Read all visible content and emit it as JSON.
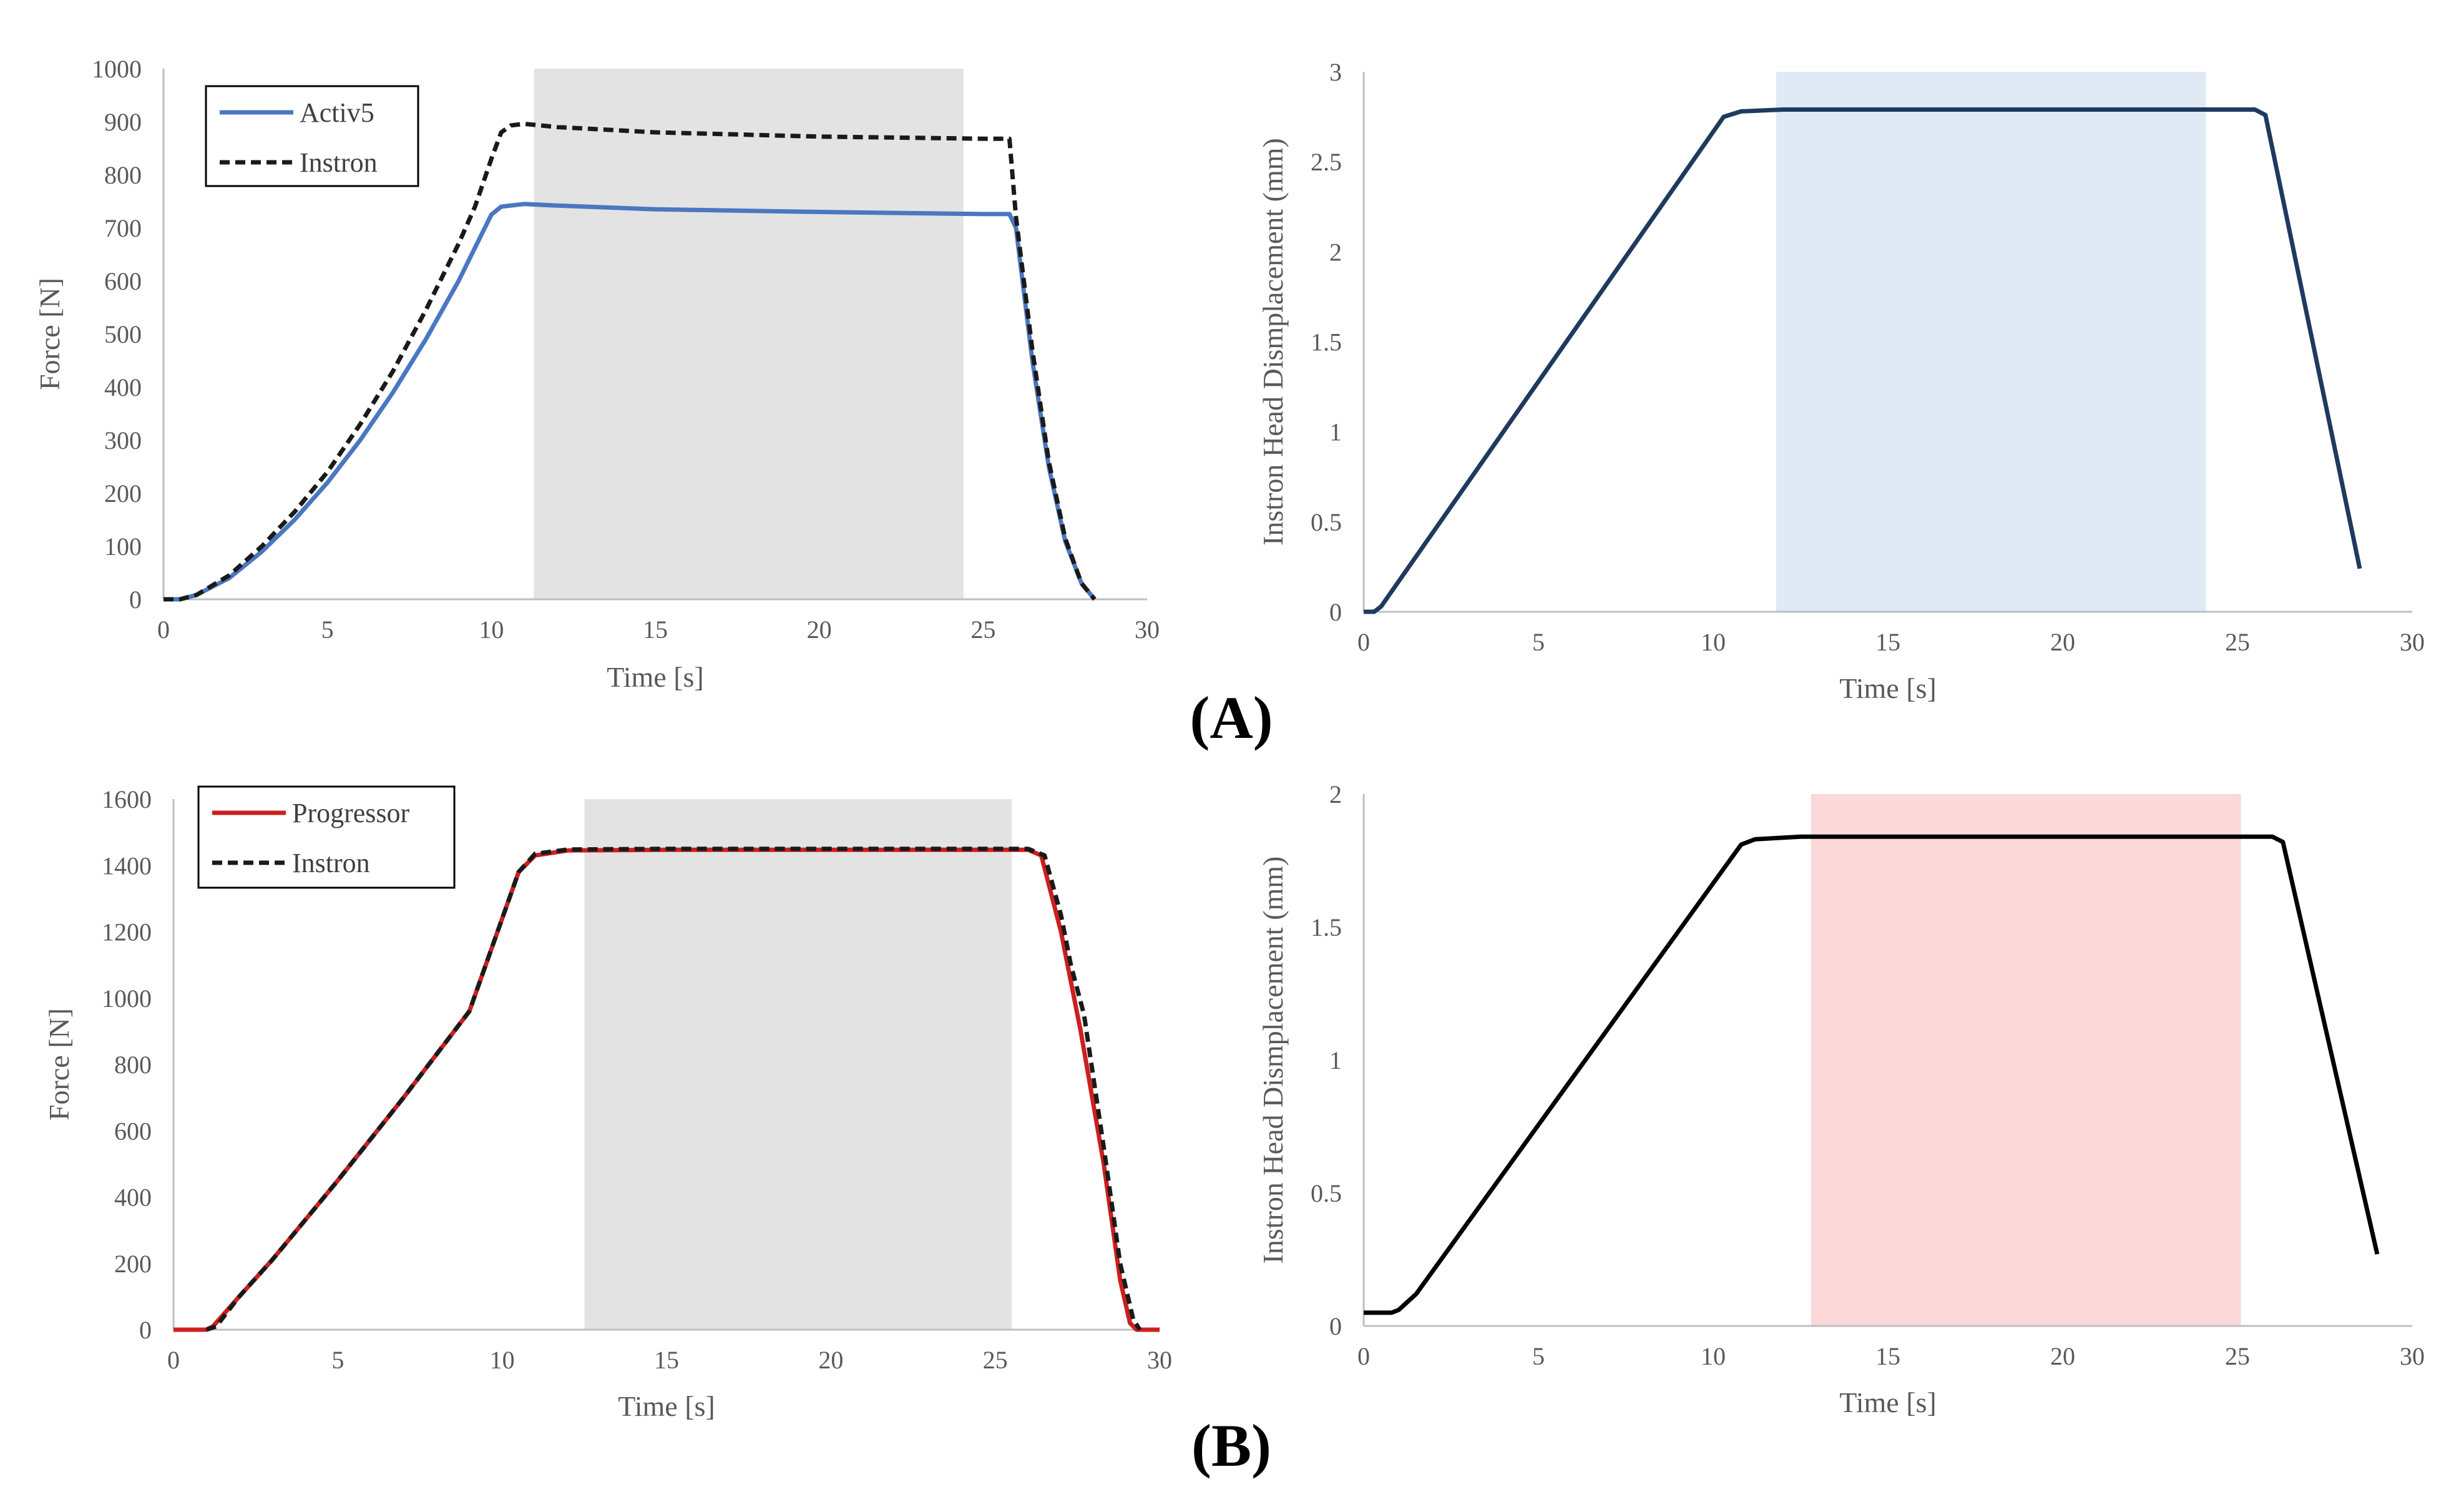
{
  "panel_labels": {
    "a": "(A)",
    "b": "(B)"
  },
  "colors": {
    "activ5": "#4a77c0",
    "instron": "#1a1a1a",
    "progressor": "#cc1f1f",
    "disp_a": "#1f3a5f",
    "disp_b": "#000000",
    "shade_gray": "#e3e3e3",
    "shade_blue": "#dfeaf5",
    "shade_pink": "#fcd8d8",
    "axis": "#bfbfbf"
  },
  "chart_data": [
    {
      "id": "a-force",
      "type": "line",
      "title": "",
      "xlabel": "Time [s]",
      "ylabel": "Force [N]",
      "xlim": [
        0,
        30
      ],
      "ylim": [
        0,
        1000
      ],
      "xticks": [
        "0",
        "5",
        "10",
        "15",
        "20",
        "25",
        "30"
      ],
      "yticks": [
        "0",
        "100",
        "200",
        "300",
        "400",
        "500",
        "600",
        "700",
        "800",
        "900",
        "1000"
      ],
      "legend": "top-left",
      "shaded_region": {
        "x": [
          11.3,
          24.4
        ],
        "color": "#e3e3e3"
      },
      "series": [
        {
          "name": "Activ5",
          "style": "solid",
          "color": "#4a77c0",
          "x": [
            0,
            0.5,
            1,
            2,
            3,
            4,
            5,
            6,
            7,
            8,
            9,
            10,
            10.3,
            11,
            12,
            15,
            20,
            25,
            25.8,
            26,
            26.5,
            27,
            27.5,
            28,
            28.4
          ],
          "y": [
            0,
            0,
            8,
            40,
            90,
            150,
            220,
            300,
            390,
            490,
            600,
            725,
            740,
            745,
            742,
            735,
            730,
            726,
            726,
            700,
            450,
            250,
            110,
            30,
            0
          ]
        },
        {
          "name": "Instron",
          "style": "dashed",
          "color": "#1a1a1a",
          "x": [
            0,
            0.5,
            1,
            2,
            3,
            4,
            5,
            6,
            7,
            8,
            9,
            9.5,
            10,
            10.3,
            10.6,
            11,
            12,
            15,
            20,
            25,
            25.8,
            26,
            26.5,
            27,
            27.5,
            28,
            28.4
          ],
          "y": [
            0,
            0,
            8,
            45,
            100,
            165,
            240,
            330,
            430,
            545,
            670,
            740,
            830,
            880,
            893,
            896,
            890,
            880,
            872,
            868,
            868,
            720,
            470,
            260,
            115,
            30,
            0
          ]
        }
      ]
    },
    {
      "id": "a-disp",
      "type": "line",
      "title": "",
      "xlabel": "Time [s]",
      "ylabel": "Instron Head Dismplacement (mm)",
      "xlim": [
        0,
        30
      ],
      "ylim": [
        0,
        3
      ],
      "xticks": [
        "0",
        "5",
        "10",
        "15",
        "20",
        "25",
        "30"
      ],
      "yticks": [
        "0",
        "0.5",
        "1",
        "1.5",
        "2",
        "2.5",
        "3"
      ],
      "shaded_region": {
        "x": [
          11.8,
          24.1
        ],
        "color": "#dfeaf5"
      },
      "series": [
        {
          "name": "Instron Head Displacement",
          "style": "solid",
          "color": "#1f3a5f",
          "x": [
            0,
            0.3,
            0.5,
            10.3,
            10.8,
            12,
            25.5,
            25.8,
            28.5
          ],
          "y": [
            0,
            0,
            0.03,
            2.75,
            2.78,
            2.79,
            2.79,
            2.76,
            0.24
          ]
        }
      ]
    },
    {
      "id": "b-force",
      "type": "line",
      "title": "",
      "xlabel": "Time [s]",
      "ylabel": "Force [N]",
      "xlim": [
        0,
        30
      ],
      "ylim": [
        0,
        1600
      ],
      "xticks": [
        "0",
        "5",
        "10",
        "15",
        "20",
        "25",
        "30"
      ],
      "yticks": [
        "0",
        "200",
        "400",
        "600",
        "800",
        "1000",
        "1200",
        "1400",
        "1600"
      ],
      "legend": "top-left",
      "shaded_region": {
        "x": [
          12.5,
          25.5
        ],
        "color": "#e3e3e3"
      },
      "series": [
        {
          "name": "Progressor",
          "style": "solid",
          "color": "#cc1f1f",
          "x": [
            0,
            1,
            1.2,
            2,
            3,
            4,
            5,
            7,
            9,
            10.5,
            11,
            12,
            15,
            20,
            25,
            26,
            26.4,
            27,
            27.3,
            27.6,
            28.3,
            28.8,
            29.1,
            29.3,
            30
          ],
          "y": [
            0,
            0,
            10,
            100,
            210,
            330,
            450,
            700,
            960,
            1380,
            1430,
            1445,
            1447,
            1447,
            1447,
            1447,
            1430,
            1200,
            1050,
            900,
            500,
            150,
            20,
            0,
            0
          ]
        },
        {
          "name": "Instron",
          "style": "dashed",
          "color": "#1a1a1a",
          "x": [
            1,
            1.3,
            2,
            3,
            4,
            5,
            7,
            9,
            10.5,
            11,
            12,
            15,
            20,
            25,
            26,
            26.5,
            27,
            27.3,
            27.7,
            28.3,
            28.8,
            29.2,
            29.4
          ],
          "y": [
            0,
            10,
            100,
            210,
            330,
            450,
            700,
            960,
            1380,
            1435,
            1448,
            1450,
            1450,
            1450,
            1450,
            1430,
            1250,
            1100,
            950,
            550,
            200,
            30,
            0
          ]
        }
      ]
    },
    {
      "id": "b-disp",
      "type": "line",
      "title": "",
      "xlabel": "Time [s]",
      "ylabel": "Instron Head Dismplacement (mm)",
      "xlim": [
        0,
        30
      ],
      "ylim": [
        0,
        2
      ],
      "xticks": [
        "0",
        "5",
        "10",
        "15",
        "20",
        "25",
        "30"
      ],
      "yticks": [
        "0",
        "0.5",
        "1",
        "1.5",
        "2"
      ],
      "shaded_region": {
        "x": [
          12.8,
          25.1
        ],
        "color": "#fcd8d8"
      },
      "series": [
        {
          "name": "Instron Head Displacement",
          "style": "solid",
          "color": "#000000",
          "x": [
            0,
            0.8,
            1,
            1.5,
            10.8,
            11.2,
            12.5,
            26,
            26.3,
            29
          ],
          "y": [
            0.05,
            0.05,
            0.06,
            0.12,
            1.81,
            1.83,
            1.84,
            1.84,
            1.82,
            0.27
          ]
        }
      ]
    }
  ]
}
